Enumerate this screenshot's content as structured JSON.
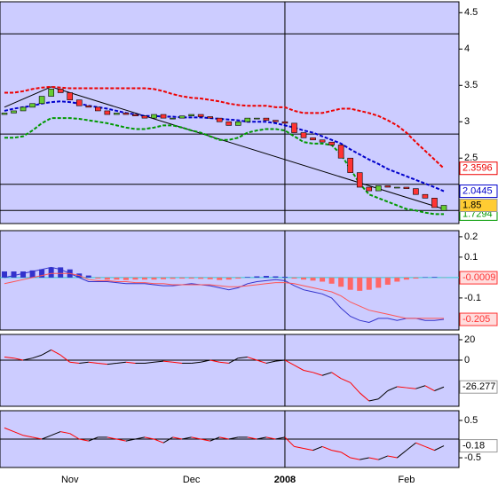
{
  "chart_data": [
    {
      "type": "candlestick",
      "categories": [
        null,
        null,
        null,
        null,
        null,
        null,
        null,
        "Nov",
        null,
        null,
        null,
        null,
        null,
        null,
        null,
        null,
        null,
        null,
        null,
        null,
        "Dec",
        null,
        null,
        null,
        null,
        null,
        null,
        null,
        null,
        null,
        "2008",
        null,
        null,
        null,
        null,
        null,
        null,
        null,
        null,
        null,
        null,
        null,
        null,
        "Feb",
        null,
        null,
        null,
        null
      ],
      "open": [
        3.1,
        3.12,
        3.15,
        3.2,
        3.25,
        3.35,
        3.45,
        3.4,
        3.3,
        3.22,
        3.2,
        3.15,
        3.1,
        3.12,
        3.1,
        3.08,
        3.05,
        3.1,
        3.05,
        3.05,
        3.08,
        3.1,
        3.07,
        3.05,
        3.0,
        2.95,
        3.0,
        3.05,
        3.05,
        3.02,
        3.0,
        2.98,
        2.85,
        2.78,
        2.75,
        2.72,
        2.68,
        2.5,
        2.3,
        2.1,
        2.05,
        2.12,
        2.1,
        2.1,
        2.08,
        2.0,
        1.95,
        1.78
      ],
      "close": [
        3.12,
        3.15,
        3.2,
        3.25,
        3.35,
        3.45,
        3.4,
        3.3,
        3.22,
        3.2,
        3.15,
        3.1,
        3.12,
        3.1,
        3.08,
        3.05,
        3.1,
        3.05,
        3.05,
        3.08,
        3.1,
        3.07,
        3.05,
        3.0,
        2.95,
        3.0,
        3.05,
        3.05,
        3.02,
        3.0,
        2.98,
        2.85,
        2.78,
        2.75,
        2.72,
        2.68,
        2.5,
        2.3,
        2.1,
        2.05,
        2.12,
        2.1,
        2.1,
        2.08,
        2.0,
        1.95,
        1.82,
        1.85
      ],
      "up_color": "#66cc33",
      "down_color": "#ff3333",
      "series": [
        {
          "name": "upper",
          "color": "#ee0000",
          "values": [
            3.4,
            3.4,
            3.42,
            3.45,
            3.47,
            3.48,
            3.47,
            3.46,
            3.46,
            3.46,
            3.46,
            3.46,
            3.46,
            3.46,
            3.46,
            3.46,
            3.45,
            3.42,
            3.38,
            3.35,
            3.33,
            3.32,
            3.3,
            3.28,
            3.25,
            3.23,
            3.22,
            3.22,
            3.22,
            3.2,
            3.2,
            3.15,
            3.12,
            3.12,
            3.12,
            3.15,
            3.18,
            3.18,
            3.15,
            3.12,
            3.08,
            3.02,
            2.95,
            2.85,
            2.72,
            2.6,
            2.48,
            2.3596
          ]
        },
        {
          "name": "middle",
          "color": "#0000cc",
          "values": [
            3.15,
            3.18,
            3.2,
            3.22,
            3.25,
            3.27,
            3.28,
            3.27,
            3.25,
            3.22,
            3.2,
            3.18,
            3.15,
            3.12,
            3.1,
            3.08,
            3.08,
            3.07,
            3.07,
            3.06,
            3.06,
            3.06,
            3.05,
            3.04,
            3.03,
            3.02,
            3.0,
            3.0,
            3.0,
            2.98,
            2.95,
            2.92,
            2.88,
            2.85,
            2.8,
            2.75,
            2.7,
            2.62,
            2.55,
            2.48,
            2.42,
            2.35,
            2.3,
            2.25,
            2.2,
            2.15,
            2.1,
            2.0445
          ]
        },
        {
          "name": "lower",
          "color": "#009900",
          "values": [
            2.78,
            2.78,
            2.8,
            2.88,
            2.98,
            3.05,
            3.05,
            3.05,
            3.04,
            3.02,
            3.0,
            2.98,
            2.95,
            2.92,
            2.9,
            2.9,
            2.92,
            2.95,
            2.95,
            2.92,
            2.88,
            2.85,
            2.8,
            2.75,
            2.75,
            2.78,
            2.85,
            2.88,
            2.9,
            2.9,
            2.88,
            2.8,
            2.72,
            2.7,
            2.7,
            2.68,
            2.55,
            2.35,
            2.15,
            2.0,
            1.95,
            1.9,
            1.85,
            1.8,
            1.78,
            1.75,
            1.73,
            1.7294
          ]
        }
      ],
      "trendline": {
        "x": [
          0,
          5,
          47
        ],
        "values": [
          3.2,
          3.48,
          1.8
        ]
      },
      "hlines": [
        4.21,
        2.83,
        2.14,
        1.78
      ],
      "ylim": [
        1.6,
        4.65
      ],
      "yticks": [
        4.5,
        4,
        3.5,
        3,
        2.5
      ]
    },
    {
      "type": "macd",
      "histogram": [
        0.03,
        0.03,
        0.03,
        0.035,
        0.04,
        0.05,
        0.05,
        0.04,
        0.02,
        0.01,
        -0.005,
        -0.01,
        -0.01,
        -0.012,
        -0.01,
        -0.01,
        -0.01,
        -0.008,
        -0.006,
        -0.005,
        -0.005,
        -0.006,
        -0.008,
        -0.012,
        -0.01,
        -0.005,
        0.003,
        0.006,
        0.008,
        0.006,
        0.004,
        -0.005,
        -0.01,
        -0.015,
        -0.02,
        -0.03,
        -0.045,
        -0.06,
        -0.065,
        -0.06,
        -0.05,
        -0.035,
        -0.02,
        -0.01,
        -0.005,
        0.002,
        0.003,
        -0.0009
      ],
      "series": [
        {
          "name": "macd",
          "color": "#3333cc",
          "values": [
            0.0,
            0.01,
            0.02,
            0.03,
            0.04,
            0.05,
            0.04,
            0.02,
            0.0,
            -0.02,
            -0.02,
            -0.02,
            -0.025,
            -0.03,
            -0.03,
            -0.03,
            -0.035,
            -0.04,
            -0.04,
            -0.035,
            -0.03,
            -0.035,
            -0.04,
            -0.05,
            -0.06,
            -0.05,
            -0.03,
            -0.02,
            -0.015,
            -0.01,
            -0.015,
            -0.04,
            -0.06,
            -0.07,
            -0.08,
            -0.1,
            -0.15,
            -0.19,
            -0.21,
            -0.22,
            -0.2,
            -0.2,
            -0.21,
            -0.2,
            -0.2,
            -0.21,
            -0.21,
            -0.205
          ]
        },
        {
          "name": "signal",
          "color": "#ff5555",
          "values": [
            -0.03,
            -0.02,
            -0.01,
            0.0,
            0.01,
            0.02,
            0.02,
            0.02,
            0.01,
            -0.01,
            -0.015,
            -0.015,
            -0.02,
            -0.02,
            -0.025,
            -0.025,
            -0.03,
            -0.03,
            -0.035,
            -0.035,
            -0.035,
            -0.035,
            -0.035,
            -0.04,
            -0.045,
            -0.045,
            -0.04,
            -0.035,
            -0.03,
            -0.025,
            -0.025,
            -0.03,
            -0.04,
            -0.05,
            -0.06,
            -0.07,
            -0.09,
            -0.12,
            -0.14,
            -0.16,
            -0.17,
            -0.18,
            -0.19,
            -0.2,
            -0.2,
            -0.2,
            -0.2,
            -0.2
          ]
        }
      ],
      "ylim": [
        -0.257,
        0.23
      ],
      "yticks": [
        0.2,
        0.1,
        -0.1
      ]
    },
    {
      "type": "line",
      "values": [
        3,
        2,
        0,
        2,
        5,
        10,
        5,
        -2,
        -3,
        -2,
        -3,
        -4,
        -3,
        -2,
        -3,
        -3,
        -2,
        -1,
        -2,
        -3,
        -3,
        -2,
        0,
        -2,
        -3,
        2,
        3,
        0,
        -3,
        -1,
        0,
        -5,
        -10,
        -12,
        -15,
        -12,
        -18,
        -22,
        -32,
        -40,
        -38,
        -30,
        -26,
        -27,
        -28,
        -25,
        -30,
        -26.277
      ],
      "up_color": "#000000",
      "down_color": "#ff0000",
      "ylim": [
        -45.2,
        25.2
      ],
      "yticks": [
        20,
        0
      ]
    },
    {
      "type": "line",
      "values": [
        0.3,
        0.2,
        0.1,
        0.05,
        0.0,
        0.1,
        0.2,
        0.15,
        0.0,
        -0.05,
        0.05,
        0.05,
        0.0,
        -0.05,
        0.0,
        0.05,
        0.0,
        -0.1,
        0.05,
        0.0,
        0.05,
        0.0,
        -0.05,
        0.05,
        0.0,
        0.05,
        0.05,
        0.0,
        0.05,
        0.0,
        0.05,
        -0.2,
        -0.25,
        -0.3,
        -0.2,
        -0.3,
        -0.35,
        -0.5,
        -0.55,
        -0.5,
        -0.55,
        -0.45,
        -0.5,
        -0.3,
        -0.1,
        -0.2,
        -0.3,
        -0.18
      ],
      "up_color": "#000000",
      "down_color": "#ff0000",
      "ylim": [
        -0.76,
        0.76
      ],
      "yticks": [
        0.5,
        -0.5
      ]
    }
  ]
}
